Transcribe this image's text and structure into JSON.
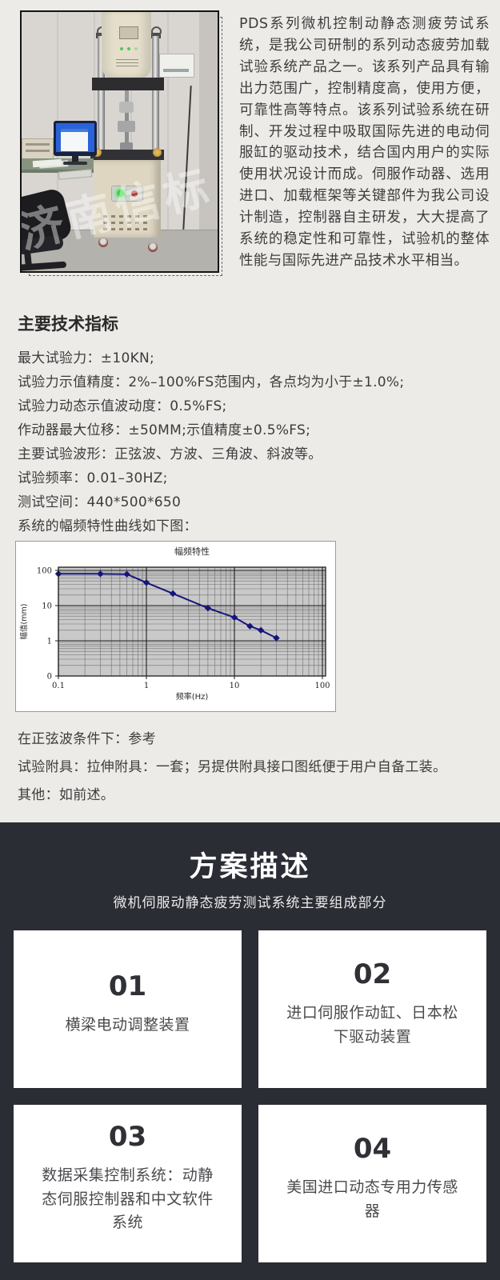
{
  "colors": {
    "light_bg": "#ecebe8",
    "dark_bg": "#2b2d35",
    "chart_line": "#15157d",
    "card_bg": "#ffffff"
  },
  "intro": {
    "description": "PDS系列微机控制动静态测疲劳试系统，是我公司研制的系列动态疲劳加载试验系统产品之一。该系列产品具有输出力范围广，控制精度高，使用方便，可靠性高等特点。该系列试验系统在研制、开发过程中吸取国际先进的电动伺服缸的驱动技术，结合国内用户的实际使用状况设计而成。伺服作动器、选用进口、加载框架等关键部件为我公司设计制造，控制器自主研发，大大提高了系统的稳定性和可靠性，试验机的整体性能与国际先进产品技术水平相当。",
    "photo_watermark": "济南信标"
  },
  "specs": {
    "heading": "主要技术指标",
    "items": [
      "最大试验力：±10KN;",
      "试验力示值精度：2%–100%FS范围内，各点均为小于±1.0%;",
      "试验力动态示值波动度：0.5%FS;",
      "作动器最大位移：±50MM;示值精度±0.5%FS;",
      "主要试验波形：正弦波、方波、三角波、斜波等。",
      "试验频率：0.01–30HZ;",
      "测试空间：440*500*650",
      "系统的幅频特性曲线如下图："
    ]
  },
  "chart_data": {
    "type": "line",
    "title": "幅频特性",
    "xlabel": "频率(Hz)",
    "ylabel": "幅值(mm)",
    "x_scale": "log",
    "y_scale": "log",
    "xlim": [
      0.1,
      100
    ],
    "ylim": [
      0.1,
      100
    ],
    "x_tick_labels": [
      "0.1",
      "1",
      "10",
      "100"
    ],
    "y_tick_labels": [
      "100",
      "10",
      "1",
      "0"
    ],
    "grid": true,
    "legend": "none",
    "line_color": "#15157d",
    "plot_bg": "#c9c9c9",
    "series": [
      {
        "name": "幅频特性",
        "x": [
          0.1,
          0.3,
          0.6,
          1,
          2,
          5,
          10,
          15,
          20,
          30
        ],
        "y": [
          80,
          80,
          78,
          45,
          22,
          8.5,
          4.6,
          2.6,
          2,
          1.2
        ]
      }
    ]
  },
  "notes": [
    "在正弦波条件下：参考",
    "试验附具：拉伸附具：一套；另提供附具接口图纸便于用户自备工装。",
    "其他：如前述。"
  ],
  "plan": {
    "title": "方案描述",
    "subtitle": "微机伺服动静态疲劳测试系统主要组成部分",
    "cards": [
      {
        "number": "01",
        "text": "横梁电动调整装置"
      },
      {
        "number": "02",
        "text": "进口伺服作动缸、日本松下驱动装置"
      },
      {
        "number": "03",
        "text": "数据采集控制系统：动静态伺服控制器和中文软件系统"
      },
      {
        "number": "04",
        "text": "美国进口动态专用力传感器"
      }
    ]
  }
}
